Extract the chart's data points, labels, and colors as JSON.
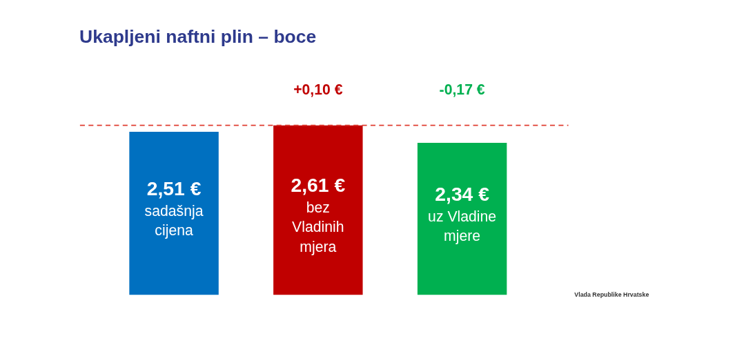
{
  "chart_data": {
    "type": "bar",
    "title": "Ukapljeni naftni plin – boce",
    "categories": [
      "sadašnja cijena",
      "bez Vladinih mjera",
      "uz Vladine mjere"
    ],
    "values": [
      2.51,
      2.61,
      2.34
    ],
    "colors": [
      "#0070c0",
      "#c00000",
      "#00b050"
    ],
    "value_labels": [
      "2,51 €",
      "2,61 €",
      "2,34 €"
    ],
    "tick_labels": false,
    "ref_lines": [
      {
        "axis": "y",
        "value": 2.61,
        "color": "#e03c31",
        "line_style": "dashed"
      }
    ],
    "annotations": [
      "+0,10 €",
      "-0,17 €",
      "Vlada Republike Hrvatske"
    ]
  }
}
